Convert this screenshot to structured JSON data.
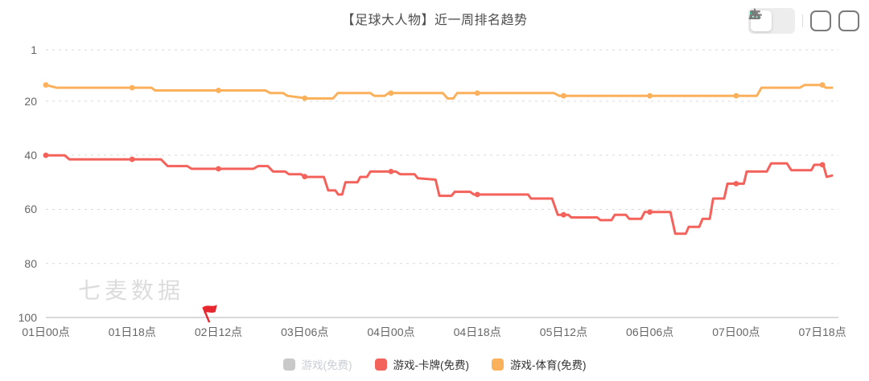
{
  "header": {
    "title": "【足球大人物】近一周排名趋势"
  },
  "toolbar": {
    "icons": [
      "bar-chart-view-icon",
      "table-view-icon",
      "export-image-icon",
      "download-icon"
    ],
    "active_view": "bar-chart-view",
    "active_icon_color": "#2dbd96",
    "inactive_icon_color": "#8c8c8c",
    "button_border_color": "#7a7a7a"
  },
  "watermark": "七麦数据",
  "chart_data": {
    "type": "line",
    "title": "【足球大人物】近一周排名趋势",
    "ylabel": "排名",
    "y_inverted": true,
    "ylim": [
      1,
      100
    ],
    "y_ticks": [
      1,
      20,
      40,
      60,
      80,
      100
    ],
    "grid": "dashed-horizontal",
    "x_axis": {
      "labels": [
        "01日00点",
        "01日18点",
        "02日12点",
        "03日06点",
        "04日00点",
        "04日18点",
        "05日12点",
        "06日06点",
        "07日00点",
        "07日18点"
      ],
      "label_hours": [
        0,
        18,
        36,
        54,
        72,
        90,
        108,
        126,
        144,
        162
      ],
      "total_hours": 164
    },
    "marker_hours": [
      0,
      18,
      36,
      54,
      72,
      90,
      108,
      126,
      144,
      162
    ],
    "legend_position": "bottom-center",
    "series": [
      {
        "name": "游戏(免费)",
        "color": "#c9c9c9",
        "selected": false,
        "points": []
      },
      {
        "name": "游戏-卡牌(免费)",
        "color": "#f4625c",
        "selected": true,
        "points": [
          [
            0,
            40
          ],
          [
            3.9,
            40
          ],
          [
            4.9,
            41.5
          ],
          [
            24,
            41.5
          ],
          [
            25.4,
            44
          ],
          [
            29.5,
            44
          ],
          [
            30.4,
            45
          ],
          [
            43.3,
            45
          ],
          [
            44.3,
            44
          ],
          [
            46.3,
            44
          ],
          [
            47.4,
            46
          ],
          [
            49.9,
            46
          ],
          [
            50.7,
            47
          ],
          [
            53.2,
            47
          ],
          [
            54.1,
            48
          ],
          [
            58,
            48
          ],
          [
            58.9,
            53
          ],
          [
            60.4,
            53
          ],
          [
            61,
            54.5
          ],
          [
            61.8,
            54.5
          ],
          [
            62.5,
            50
          ],
          [
            65,
            50
          ],
          [
            65.6,
            48
          ],
          [
            67,
            48
          ],
          [
            67.7,
            46
          ],
          [
            73,
            46
          ],
          [
            73.9,
            47
          ],
          [
            76.9,
            47
          ],
          [
            77.6,
            48.5
          ],
          [
            81.3,
            49
          ],
          [
            82.1,
            55
          ],
          [
            84.6,
            55
          ],
          [
            85.3,
            53.5
          ],
          [
            88.5,
            53.5
          ],
          [
            89.3,
            54.5
          ],
          [
            100.6,
            54.5
          ],
          [
            101.2,
            56
          ],
          [
            105.6,
            56
          ],
          [
            106.8,
            62
          ],
          [
            109,
            62
          ],
          [
            109.6,
            63
          ],
          [
            115,
            63
          ],
          [
            115.7,
            64
          ],
          [
            118,
            64
          ],
          [
            118.7,
            62
          ],
          [
            121,
            62
          ],
          [
            121.7,
            63.5
          ],
          [
            124.2,
            63.5
          ],
          [
            124.9,
            61
          ],
          [
            130.3,
            61
          ],
          [
            131.3,
            69
          ],
          [
            133.5,
            69
          ],
          [
            134.1,
            66.5
          ],
          [
            136.3,
            66.5
          ],
          [
            137,
            63.5
          ],
          [
            138.5,
            63.5
          ],
          [
            139.2,
            56
          ],
          [
            141.5,
            56
          ],
          [
            142.2,
            50.5
          ],
          [
            145.6,
            50.5
          ],
          [
            146.2,
            46
          ],
          [
            150.4,
            46
          ],
          [
            151.3,
            43
          ],
          [
            154.6,
            43
          ],
          [
            155.5,
            45.5
          ],
          [
            159.7,
            45.5
          ],
          [
            160.3,
            43.5
          ],
          [
            162.2,
            43.5
          ],
          [
            162.9,
            48
          ],
          [
            164,
            47.5
          ]
        ]
      },
      {
        "name": "游戏-体育(免费)",
        "color": "#fbb15c",
        "selected": true,
        "points": [
          [
            0,
            14
          ],
          [
            2.2,
            15
          ],
          [
            22,
            15
          ],
          [
            22.8,
            16
          ],
          [
            45.8,
            16
          ],
          [
            46.8,
            17
          ],
          [
            49.5,
            17
          ],
          [
            50.4,
            18
          ],
          [
            54.5,
            19
          ],
          [
            59.9,
            19
          ],
          [
            60.9,
            17
          ],
          [
            67.7,
            17
          ],
          [
            68.5,
            18
          ],
          [
            70.7,
            18
          ],
          [
            71.5,
            17
          ],
          [
            82.8,
            17
          ],
          [
            83.8,
            19
          ],
          [
            85,
            19
          ],
          [
            85.8,
            17
          ],
          [
            106,
            17
          ],
          [
            107.1,
            18
          ],
          [
            148.3,
            18
          ],
          [
            149.3,
            15
          ],
          [
            157.3,
            15
          ],
          [
            158.3,
            14
          ],
          [
            162,
            14
          ],
          [
            162.7,
            15
          ],
          [
            164,
            15
          ]
        ]
      }
    ],
    "annotations": [
      {
        "type": "flag",
        "hour": 33.7,
        "color": "#e8262d"
      }
    ],
    "colors": {
      "grid_line": "#d9d9d9",
      "axis_line": "#b5b5b5",
      "tick_label": "#666666",
      "title": "#4d4d4d",
      "watermark": "#dcdcdc"
    }
  }
}
